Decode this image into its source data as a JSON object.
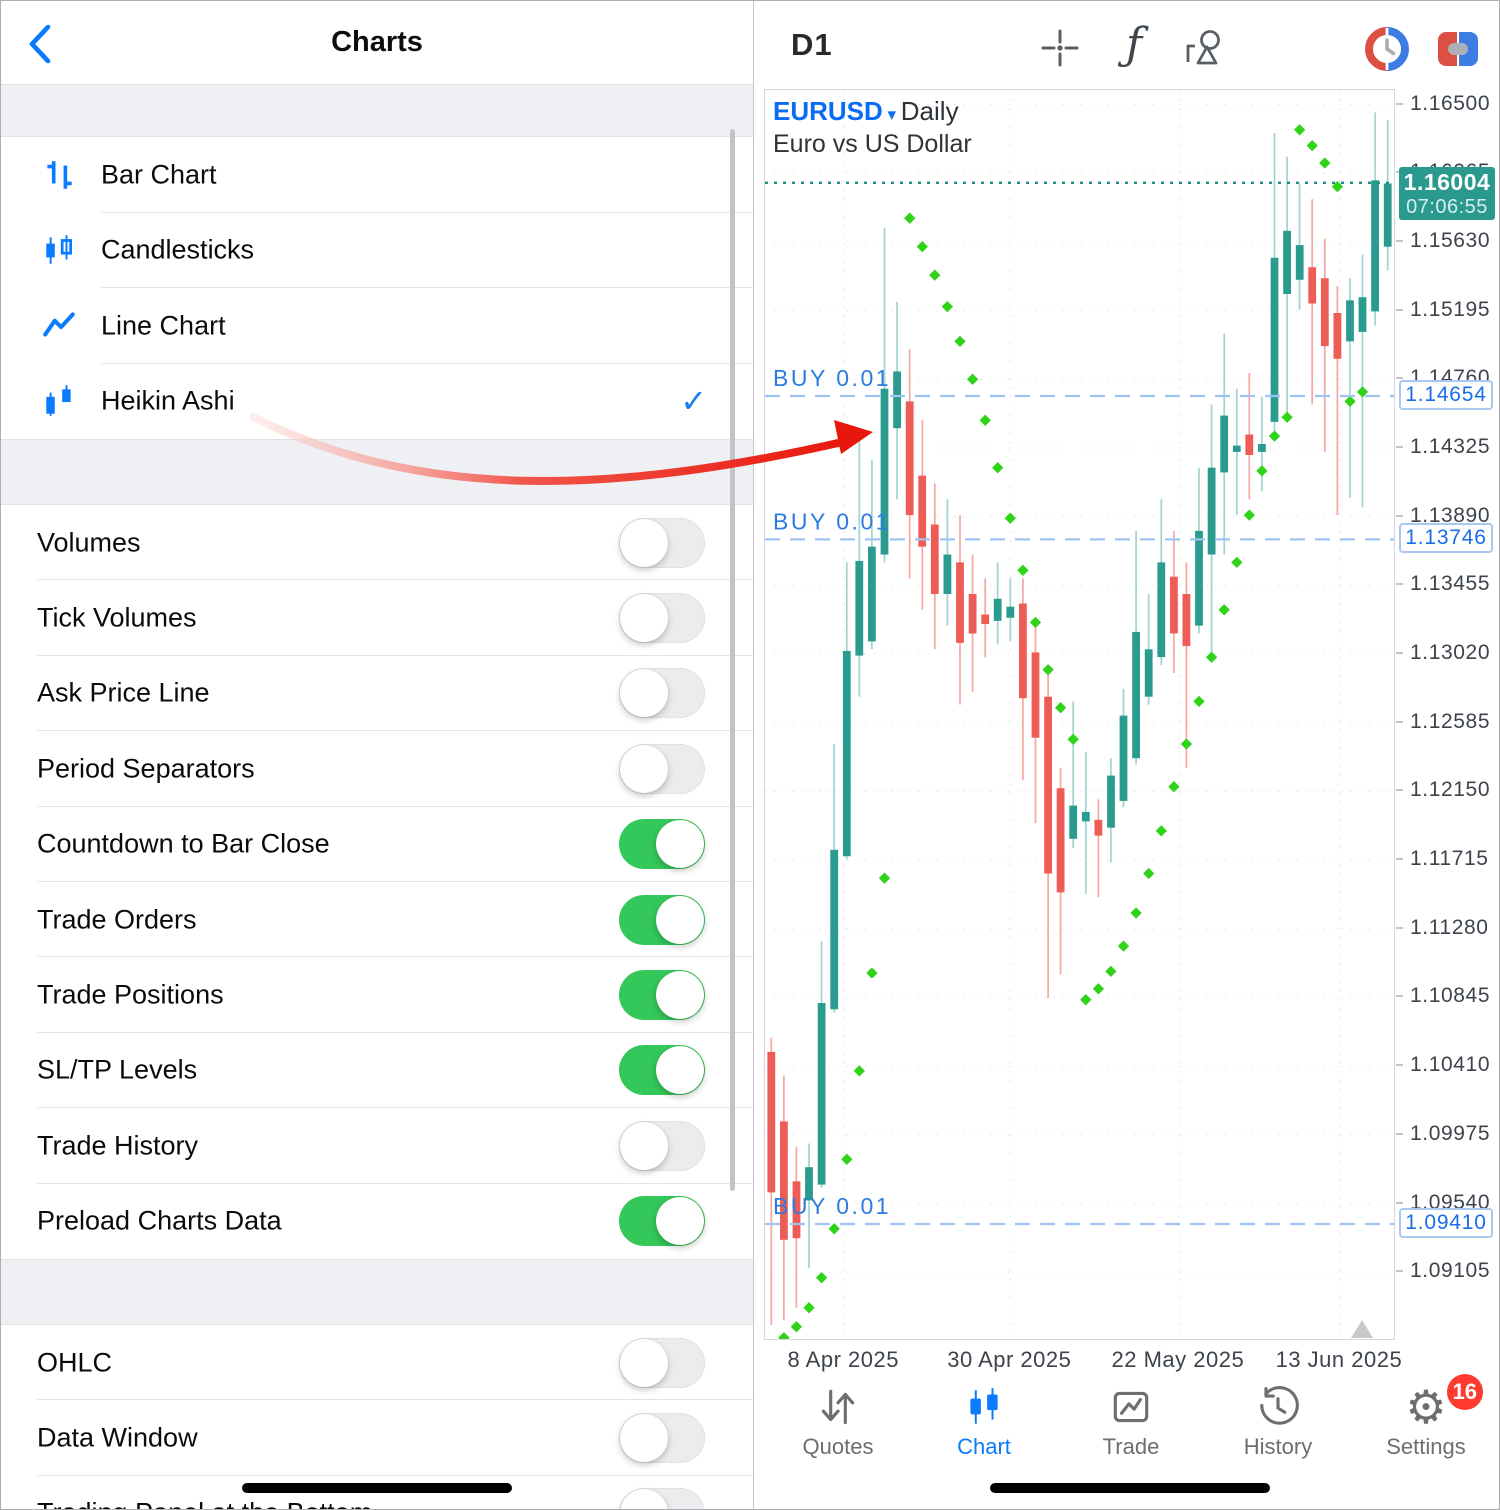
{
  "colors": {
    "accent": "#0a7aff",
    "toggle_on": "#34c759",
    "candle_up": "#2a9c8f",
    "candle_down": "#ee5d55",
    "wick_up": "#9fd5ce",
    "wick_down": "#f4a7a1",
    "sar": "#2fd418",
    "price_line": "#1f8e84",
    "price_box_bg": "#2b9a8e",
    "buy_line": "#a0c4f2",
    "buy_text": "#2d7be0",
    "badge": "#ff3b30",
    "annotation_arrow": "#e8170c"
  },
  "left_panel": {
    "title": "Charts",
    "back_icon": "chevron-left-icon",
    "chart_types": [
      {
        "label": "Bar Chart",
        "icon": "bar-chart",
        "selected": false
      },
      {
        "label": "Candlesticks",
        "icon": "candlesticks",
        "selected": false
      },
      {
        "label": "Line Chart",
        "icon": "line-chart",
        "selected": false
      },
      {
        "label": "Heikin Ashi",
        "icon": "heikin-ashi",
        "selected": true
      }
    ],
    "toggles": [
      {
        "label": "Volumes",
        "on": false
      },
      {
        "label": "Tick Volumes",
        "on": false
      },
      {
        "label": "Ask Price Line",
        "on": false
      },
      {
        "label": "Period Separators",
        "on": false
      },
      {
        "label": "Countdown to Bar Close",
        "on": true
      },
      {
        "label": "Trade Orders",
        "on": true
      },
      {
        "label": "Trade Positions",
        "on": true
      },
      {
        "label": "SL/TP Levels",
        "on": true
      },
      {
        "label": "Trade History",
        "on": false
      },
      {
        "label": "Preload Charts Data",
        "on": true
      }
    ],
    "extra_toggles": [
      {
        "label": "OHLC",
        "on": false
      },
      {
        "label": "Data Window",
        "on": false
      },
      {
        "label": "Trading Panel at the Bottom",
        "on": false
      }
    ]
  },
  "toolbar": {
    "timeframe": "D1",
    "icons": [
      "crosshair-icon",
      "function-icon",
      "objects-icon",
      "sessions-clock-icon",
      "split-view-icon"
    ]
  },
  "chart": {
    "symbol": "EURUSD",
    "dropdown_glyph": "▾",
    "period_label": "Daily",
    "description": "Euro vs US Dollar",
    "current_price": "1.16004",
    "bar_countdown": "07:06:55",
    "current_price_value": 1.16004,
    "price_max": 1.16592,
    "price_min": 1.08682,
    "y_ticks": [
      {
        "label": "1.16500",
        "p": 1.165
      },
      {
        "label": "1.16065",
        "p": 1.16065
      },
      {
        "label": "1.15630",
        "p": 1.1563
      },
      {
        "label": "1.15195",
        "p": 1.15195
      },
      {
        "label": "1.14760",
        "p": 1.1476
      },
      {
        "label": "1.14325",
        "p": 1.14325
      },
      {
        "label": "1.13890",
        "p": 1.1389
      },
      {
        "label": "1.13455",
        "p": 1.13455
      },
      {
        "label": "1.13020",
        "p": 1.1302
      },
      {
        "label": "1.12585",
        "p": 1.12585
      },
      {
        "label": "1.12150",
        "p": 1.1215
      },
      {
        "label": "1.11715",
        "p": 1.11715
      },
      {
        "label": "1.11280",
        "p": 1.1128
      },
      {
        "label": "1.10845",
        "p": 1.10845
      },
      {
        "label": "1.10410",
        "p": 1.1041
      },
      {
        "label": "1.09975",
        "p": 1.09975
      },
      {
        "label": "1.09540",
        "p": 1.0954
      },
      {
        "label": "1.09105",
        "p": 1.09105
      }
    ],
    "x_ticks": [
      {
        "label": "8 Apr 2025",
        "i": 5.8
      },
      {
        "label": "30 Apr 2025",
        "i": 19.0
      },
      {
        "label": "22 May 2025",
        "i": 32.4
      },
      {
        "label": "13 Jun 2025",
        "i": 45.2
      }
    ],
    "orders": [
      {
        "label": "BUY 0.01",
        "price": 1.14654,
        "axis_label": "1.14654"
      },
      {
        "label": "BUY 0.01",
        "price": 1.13746,
        "axis_label": "1.13746"
      },
      {
        "label": "BUY 0.01",
        "price": 1.0941,
        "axis_label": "1.09410"
      }
    ]
  },
  "chart_data": {
    "type": "candlestick",
    "title": "EURUSD Daily (Heikin Ashi)",
    "y_range": [
      1.08682,
      1.16592
    ],
    "x_tick_labels": [
      "8 Apr 2025",
      "30 Apr 2025",
      "22 May 2025",
      "13 Jun 2025"
    ],
    "series": [
      {
        "name": "EURUSD Heikin Ashi candles [open,high,low,close]",
        "candles": [
          [
            1.105,
            1.1059,
            1.0877,
            1.0961
          ],
          [
            1.1006,
            1.1035,
            1.088,
            1.0931
          ],
          [
            1.0968,
            1.099,
            1.0888,
            1.0932
          ],
          [
            1.0956,
            1.0992,
            1.0913,
            1.0977
          ],
          [
            1.0966,
            1.112,
            1.0964,
            1.1081
          ],
          [
            1.1077,
            1.1245,
            1.1075,
            1.1178
          ],
          [
            1.1174,
            1.136,
            1.1172,
            1.1304
          ],
          [
            1.1301,
            1.1443,
            1.1275,
            1.1361
          ],
          [
            1.131,
            1.1425,
            1.1305,
            1.137
          ],
          [
            1.1365,
            1.1572,
            1.136,
            1.147
          ],
          [
            1.1445,
            1.1525,
            1.14,
            1.1481
          ],
          [
            1.1462,
            1.1495,
            1.135,
            1.139
          ],
          [
            1.1415,
            1.145,
            1.133,
            1.137
          ],
          [
            1.1384,
            1.141,
            1.1305,
            1.134
          ],
          [
            1.134,
            1.14,
            1.132,
            1.1365
          ],
          [
            1.136,
            1.139,
            1.127,
            1.1309
          ],
          [
            1.134,
            1.1365,
            1.1278,
            1.1315
          ],
          [
            1.1327,
            1.135,
            1.13,
            1.1321
          ],
          [
            1.1323,
            1.136,
            1.1308,
            1.1337
          ],
          [
            1.1325,
            1.135,
            1.131,
            1.1332
          ],
          [
            1.1334,
            1.135,
            1.1222,
            1.1274
          ],
          [
            1.1303,
            1.132,
            1.1195,
            1.1249
          ],
          [
            1.1275,
            1.129,
            1.1084,
            1.1163
          ],
          [
            1.1217,
            1.123,
            1.1099,
            1.1151
          ],
          [
            1.1185,
            1.1272,
            1.1179,
            1.1206
          ],
          [
            1.1196,
            1.124,
            1.115,
            1.1202
          ],
          [
            1.1197,
            1.121,
            1.1148,
            1.1187
          ],
          [
            1.1192,
            1.1236,
            1.117,
            1.1225
          ],
          [
            1.1209,
            1.128,
            1.1205,
            1.1263
          ],
          [
            1.1236,
            1.138,
            1.1232,
            1.1316
          ],
          [
            1.1275,
            1.134,
            1.127,
            1.1305
          ],
          [
            1.13,
            1.14,
            1.1295,
            1.136
          ],
          [
            1.1351,
            1.138,
            1.129,
            1.1315
          ],
          [
            1.134,
            1.136,
            1.123,
            1.1307
          ],
          [
            1.132,
            1.142,
            1.1315,
            1.138
          ],
          [
            1.1365,
            1.146,
            1.13,
            1.142
          ],
          [
            1.1417,
            1.1505,
            1.1365,
            1.1453
          ],
          [
            1.143,
            1.147,
            1.139,
            1.1434
          ],
          [
            1.1441,
            1.148,
            1.14,
            1.1428
          ],
          [
            1.143,
            1.1465,
            1.1405,
            1.1435
          ],
          [
            1.1449,
            1.1632,
            1.144,
            1.1553
          ],
          [
            1.153,
            1.1617,
            1.1455,
            1.157
          ],
          [
            1.1539,
            1.16,
            1.152,
            1.1561
          ],
          [
            1.1547,
            1.159,
            1.146,
            1.1524
          ],
          [
            1.154,
            1.1565,
            1.143,
            1.1497
          ],
          [
            1.1518,
            1.1535,
            1.139,
            1.1489
          ],
          [
            1.15,
            1.154,
            1.1401,
            1.1526
          ],
          [
            1.1506,
            1.1555,
            1.1395,
            1.1528
          ],
          [
            1.1519,
            1.1645,
            1.151,
            1.1602
          ],
          [
            1.156,
            1.164,
            1.1545,
            1.16
          ]
        ]
      },
      {
        "name": "Parabolic SAR dots [index,price]",
        "points": [
          [
            1,
            1.0869
          ],
          [
            2,
            1.0876
          ],
          [
            3,
            1.0888
          ],
          [
            4,
            1.0907
          ],
          [
            5,
            1.0938
          ],
          [
            6,
            1.0982
          ],
          [
            7,
            1.1038
          ],
          [
            8,
            1.11
          ],
          [
            9,
            1.116
          ],
          [
            11,
            1.1578
          ],
          [
            12,
            1.156
          ],
          [
            13,
            1.1542
          ],
          [
            14,
            1.1522
          ],
          [
            15,
            1.15
          ],
          [
            16,
            1.1476
          ],
          [
            17,
            1.145
          ],
          [
            18,
            1.142
          ],
          [
            19,
            1.1388
          ],
          [
            20,
            1.1355
          ],
          [
            21,
            1.1322
          ],
          [
            22,
            1.1292
          ],
          [
            23,
            1.1268
          ],
          [
            24,
            1.1248
          ],
          [
            25,
            1.1083
          ],
          [
            26,
            1.109
          ],
          [
            27,
            1.1101
          ],
          [
            28,
            1.1117
          ],
          [
            29,
            1.1138
          ],
          [
            30,
            1.1163
          ],
          [
            31,
            1.119
          ],
          [
            32,
            1.1218
          ],
          [
            33,
            1.1245
          ],
          [
            34,
            1.1272
          ],
          [
            35,
            1.13
          ],
          [
            36,
            1.133
          ],
          [
            37,
            1.136
          ],
          [
            38,
            1.139
          ],
          [
            39,
            1.1418
          ],
          [
            40,
            1.144
          ],
          [
            41,
            1.1452
          ],
          [
            42,
            1.1634
          ],
          [
            43,
            1.1624
          ],
          [
            44,
            1.1613
          ],
          [
            45,
            1.1598
          ],
          [
            46,
            1.1462
          ],
          [
            47,
            1.1468
          ]
        ]
      }
    ]
  },
  "bottom_nav": {
    "items": [
      {
        "label": "Quotes",
        "icon": "quotes",
        "active": false
      },
      {
        "label": "Chart",
        "icon": "chart",
        "active": true
      },
      {
        "label": "Trade",
        "icon": "trade",
        "active": false
      },
      {
        "label": "History",
        "icon": "history",
        "active": false
      },
      {
        "label": "Settings",
        "icon": "settings",
        "active": false,
        "badge": "16"
      }
    ]
  }
}
